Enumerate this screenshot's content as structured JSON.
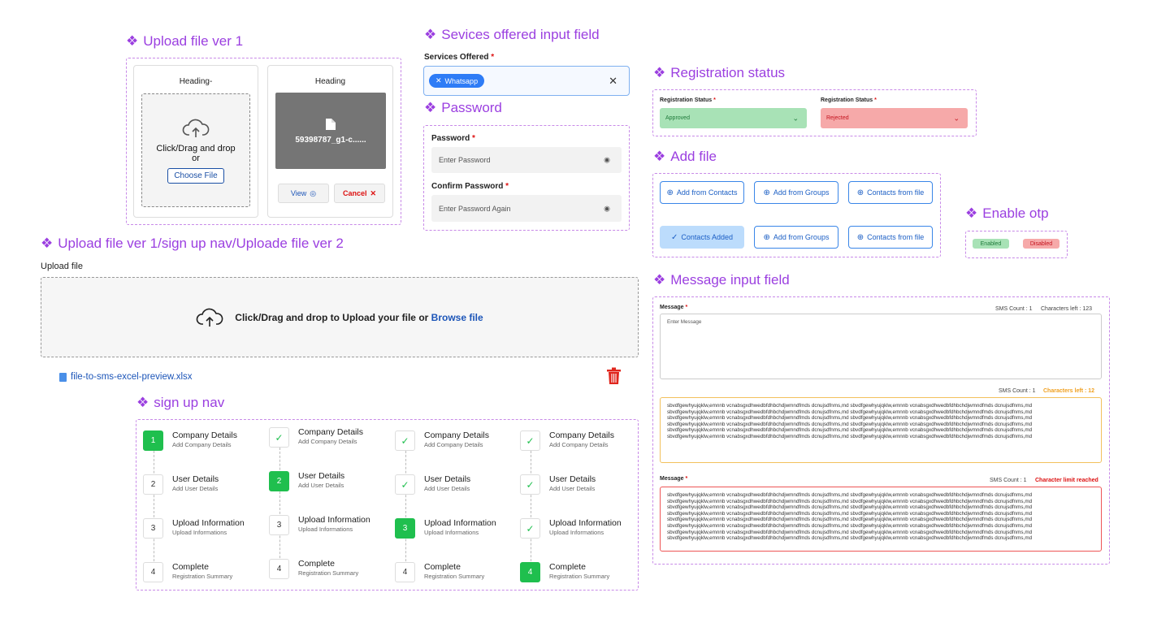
{
  "sections": {
    "upload_v1": "Upload file ver 1",
    "services": "Sevices offered input field",
    "password": "Password",
    "registration": "Registration status",
    "add_file": "Add file",
    "enable_otp": "Enable otp",
    "upload_v2": "Upload file ver 1/sign up nav/Uploade file ver 2",
    "signup_nav": "sign up nav",
    "message": "Message input field"
  },
  "upload_v1": {
    "card1_heading": "Heading-",
    "drop_text1": "Click/Drag and drop",
    "drop_text2": "or",
    "choose_button": "Choose File",
    "card2_heading": "Heading",
    "file_name": "59398787_g1-c......",
    "view_button": "View",
    "cancel_button": "Cancel"
  },
  "services": {
    "label": "Services Offered",
    "required": "*",
    "chip": "Whatsapp"
  },
  "password": {
    "label": "Password",
    "placeholder": "Enter Password",
    "confirm_label": "Confirm Password",
    "confirm_placeholder": "Enter Password Again",
    "required": "*"
  },
  "registration": {
    "label1": "Registration Status",
    "value1": "Approved",
    "label2": "Registration Status",
    "value2": "Rejected",
    "required": "*",
    "approved_color": "#a8e2b6",
    "rejected_color": "#f6a9a9"
  },
  "add_file": {
    "row1": [
      "Add from Contacts",
      "Add from Groups",
      "Contacts from file"
    ],
    "row2": [
      "Contacts Added",
      "Add from Groups",
      "Contacts from file"
    ]
  },
  "otp": {
    "enabled": "Enabled",
    "disabled": "Disabled"
  },
  "upload_v2": {
    "label": "Upload file",
    "drop_text": "Click/Drag and drop to Upload your file or",
    "browse": "Browse file",
    "file_name": "file-to-sms-excel-preview.xlsx"
  },
  "signup_steps": [
    {
      "title": "Company Details",
      "sub": "Add Company Details",
      "num": "1"
    },
    {
      "title": "User Details",
      "sub": "Add User Details",
      "num": "2"
    },
    {
      "title": "Upload Information",
      "sub": "Upload Informations",
      "num": "3"
    },
    {
      "title": "Complete",
      "sub": "Registration Summary",
      "num": "4"
    }
  ],
  "message": {
    "label": "Message",
    "required": "*",
    "sms_count": "SMS Count : 1",
    "chars_left_123": "Characters left : 123",
    "placeholder": "Enter Message",
    "chars_left_12": "Characters left : 12",
    "limit_reached": "Character limit reached",
    "line": "sbvdfgewhyujqklw,emnnb vcnabsgxdhwedbfdhbchdjwmndfmds dcnujsdfnms,md sbvdfgewhyujqklw,emnnb vcnabsgxdhwedbfdhbchdjwmndfmds dcnujsdfnms,md"
  }
}
